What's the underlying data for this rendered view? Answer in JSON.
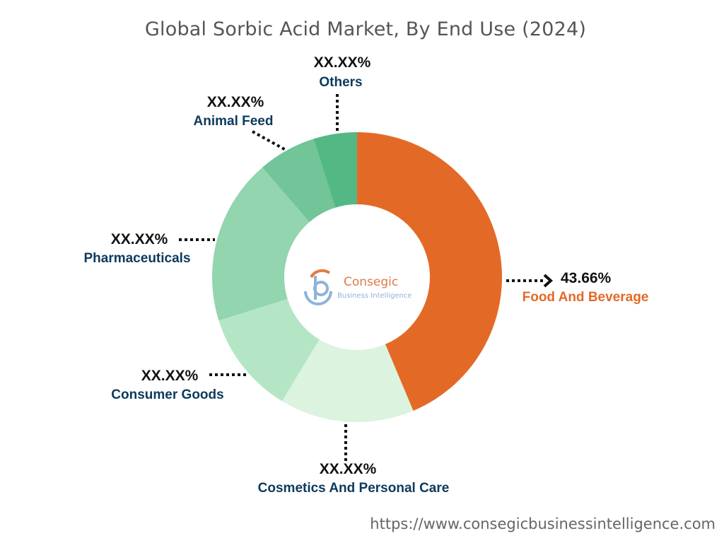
{
  "chart_data": {
    "type": "pie",
    "style": "donut",
    "title": "Global Sorbic Acid Market, By End Use (2024)",
    "slices": [
      {
        "name": "Food And Beverage",
        "label": "43.66%",
        "value": 43.66,
        "color": "#E36A26",
        "label_color": "#E36A26"
      },
      {
        "name": "Cosmetics And Personal Care",
        "label": "XX.XX%",
        "value": 15.0,
        "color": "#DCF3DF",
        "label_color": "#0D3A5C"
      },
      {
        "name": "Consumer Goods",
        "label": "XX.XX%",
        "value": 11.5,
        "color": "#B4E6C6",
        "label_color": "#0D3A5C"
      },
      {
        "name": "Pharmaceuticals",
        "label": "XX.XX%",
        "value": 18.5,
        "color": "#92D5AE",
        "label_color": "#0D3A5C"
      },
      {
        "name": "Animal Feed",
        "label": "XX.XX%",
        "value": 6.5,
        "color": "#72C598",
        "label_color": "#0D3A5C"
      },
      {
        "name": "Others",
        "label": "XX.XX%",
        "value": 4.84,
        "color": "#54B884",
        "label_color": "#0D3A5C"
      }
    ]
  },
  "logo": {
    "name": "Consegic",
    "tagline": "Business Intelligence"
  },
  "footer": {
    "url": "https://www.consegicbusinessintelligence.com"
  }
}
